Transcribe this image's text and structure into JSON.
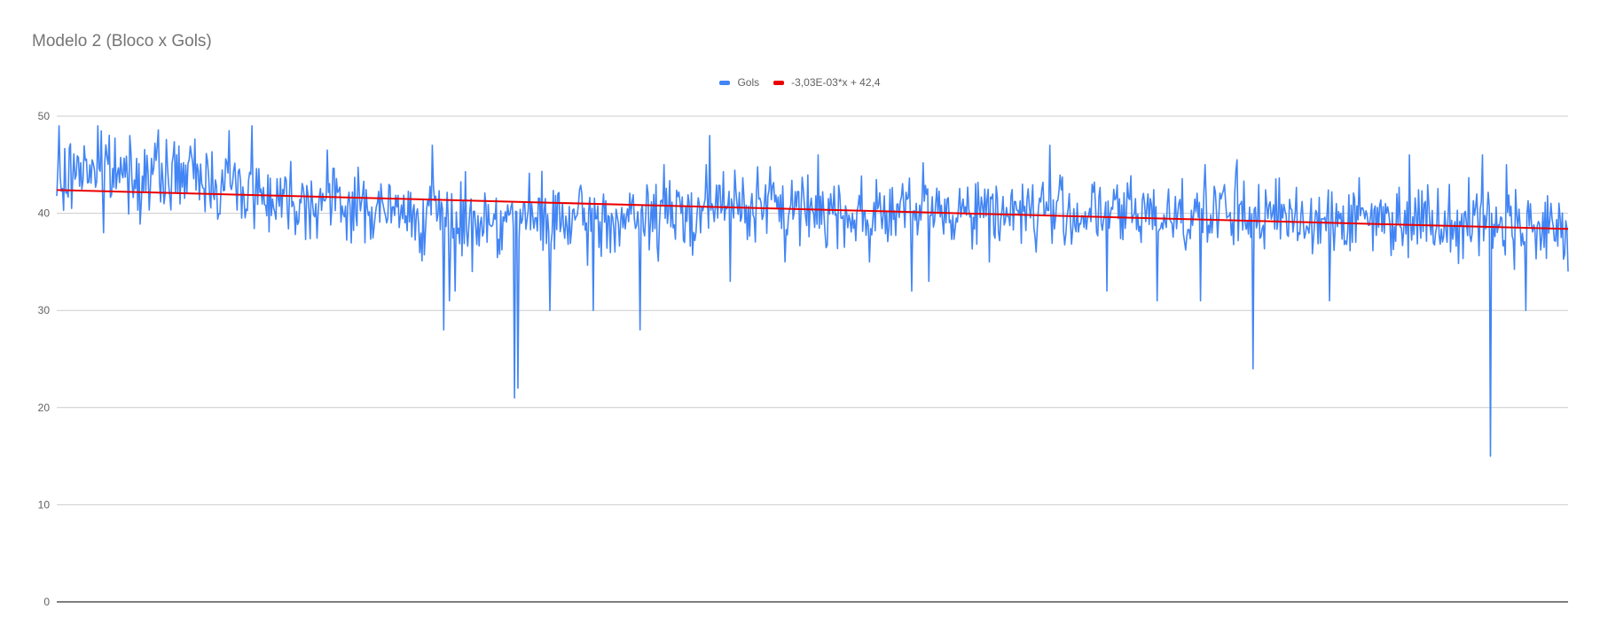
{
  "chart_data": {
    "type": "line",
    "title": "Modelo 2 (Bloco x Gols)",
    "xlabel": "",
    "ylabel": "",
    "ylim": [
      0,
      50
    ],
    "yticks": [
      0,
      10,
      20,
      30,
      40,
      50
    ],
    "xlim": [
      1,
      1325
    ],
    "grid": true,
    "legend_position": "top",
    "series": [
      {
        "name": "Gols",
        "color": "#4285f4",
        "type": "line",
        "x_range": [
          1,
          1325
        ],
        "anchors": [
          [
            1,
            42
          ],
          [
            20,
            45
          ],
          [
            60,
            44
          ],
          [
            120,
            44
          ],
          [
            180,
            42
          ],
          [
            250,
            41
          ],
          [
            300,
            40
          ],
          [
            340,
            39.5
          ],
          [
            400,
            39.5
          ],
          [
            460,
            39
          ],
          [
            520,
            39.5
          ],
          [
            600,
            41
          ],
          [
            700,
            40
          ],
          [
            800,
            40.5
          ],
          [
            900,
            40
          ],
          [
            1000,
            40
          ],
          [
            1100,
            39.5
          ],
          [
            1200,
            39.5
          ],
          [
            1280,
            39
          ],
          [
            1325,
            38
          ]
        ],
        "noise_amplitude": 4.2,
        "spikes": [
          [
            3,
            39
          ],
          [
            42,
            38
          ],
          [
            340,
            28
          ],
          [
            345,
            31
          ],
          [
            350,
            32
          ],
          [
            365,
            34
          ],
          [
            402,
            21
          ],
          [
            405,
            22
          ],
          [
            433,
            30
          ],
          [
            471,
            30
          ],
          [
            512,
            28
          ],
          [
            591,
            33
          ],
          [
            639,
            35
          ],
          [
            713,
            35
          ],
          [
            750,
            32
          ],
          [
            765,
            33
          ],
          [
            818,
            35
          ],
          [
            921,
            32
          ],
          [
            965,
            31
          ],
          [
            1003,
            31
          ],
          [
            1049,
            24
          ],
          [
            1116,
            31
          ],
          [
            1257,
            15
          ],
          [
            1288,
            30
          ],
          [
            1325,
            34
          ]
        ],
        "peaks": [
          [
            3,
            49
          ],
          [
            37,
            49
          ],
          [
            65,
            48
          ],
          [
            152,
            48.5
          ],
          [
            172,
            49
          ],
          [
            238,
            46.5
          ],
          [
            330,
            47
          ],
          [
            533,
            45
          ],
          [
            570,
            45
          ],
          [
            573,
            48
          ],
          [
            668,
            46
          ],
          [
            871,
            47
          ],
          [
            1007,
            45
          ],
          [
            1035,
            45.5
          ],
          [
            1186,
            46
          ],
          [
            1250,
            46
          ],
          [
            1271,
            45
          ]
        ],
        "seed": 7
      },
      {
        "name": "-3,03E-03*x + 42,4",
        "color": "#ea0000",
        "type": "trendline",
        "slope": -0.00303,
        "intercept": 42.4
      }
    ]
  }
}
